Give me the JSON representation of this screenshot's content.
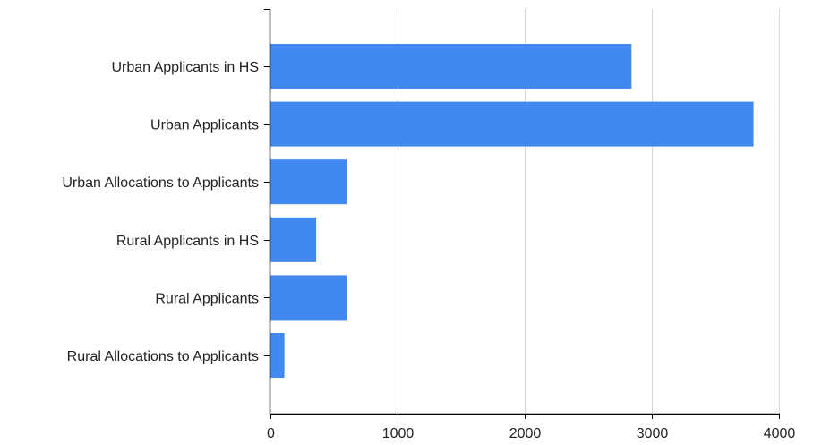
{
  "chart_data": {
    "type": "bar",
    "orientation": "horizontal",
    "title": "",
    "xlabel": "",
    "ylabel": "",
    "categories": [
      "Urban Applicants in HS",
      "Urban Applicants",
      "Urban Allocations to Applicants",
      "Rural Applicants in HS",
      "Rural Applicants",
      "Rural Allocations to Applicants"
    ],
    "values": [
      2840,
      3800,
      600,
      360,
      600,
      110
    ],
    "xlim": [
      0,
      4000
    ],
    "xticks": [
      0,
      1000,
      2000,
      3000,
      4000
    ],
    "grid": "vertical",
    "legend": "none",
    "colors": {
      "bar": "#4189ee",
      "grid": "#d9d9d9",
      "axis": "#000000"
    }
  }
}
